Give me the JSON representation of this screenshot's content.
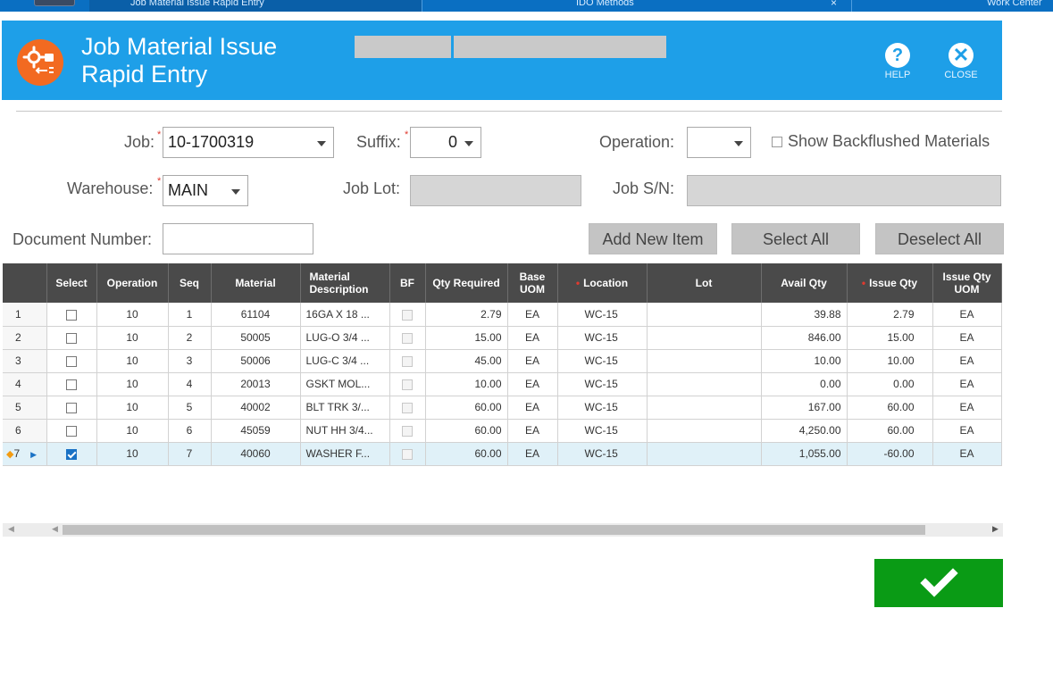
{
  "app": {
    "tabs": [
      "Job Material Issue Rapid Entry",
      "IDO Methods",
      "Work Center"
    ],
    "title_line1": "Job Material Issue",
    "title_line2": "Rapid Entry",
    "help_label": "HELP",
    "close_label": "CLOSE"
  },
  "form": {
    "job_label": "Job:",
    "job_value": "10-1700319",
    "suffix_label": "Suffix:",
    "suffix_value": "0",
    "operation_label": "Operation:",
    "operation_value": "",
    "show_backflushed_label": "Show Backflushed Materials",
    "warehouse_label": "Warehouse:",
    "warehouse_value": "MAIN",
    "job_lot_label": "Job Lot:",
    "job_sn_label": "Job S/N:",
    "doc_number_label": "Document Number:",
    "doc_number_value": ""
  },
  "buttons": {
    "add_new_item": "Add New Item",
    "select_all": "Select All",
    "deselect_all": "Deselect All"
  },
  "grid": {
    "columns": [
      "Select",
      "Operation",
      "Seq",
      "Material",
      "Material Description",
      "BF",
      "Qty Required",
      "Base UOM",
      "Location",
      "Lot",
      "Avail Qty",
      "Issue Qty",
      "Issue Qty UOM"
    ],
    "rows": [
      {
        "n": "1",
        "selected": false,
        "operation": "10",
        "seq": "1",
        "material": "61104",
        "desc": "16GA X 18 ...",
        "qty_required": "2.79",
        "base_uom": "EA",
        "location": "WC-15",
        "lot": "",
        "avail_qty": "39.88",
        "issue_qty": "2.79",
        "issue_uom": "EA"
      },
      {
        "n": "2",
        "selected": false,
        "operation": "10",
        "seq": "2",
        "material": "50005",
        "desc": "LUG-O 3/4 ...",
        "qty_required": "15.00",
        "base_uom": "EA",
        "location": "WC-15",
        "lot": "",
        "avail_qty": "846.00",
        "issue_qty": "15.00",
        "issue_uom": "EA"
      },
      {
        "n": "3",
        "selected": false,
        "operation": "10",
        "seq": "3",
        "material": "50006",
        "desc": "LUG-C 3/4 ...",
        "qty_required": "45.00",
        "base_uom": "EA",
        "location": "WC-15",
        "lot": "",
        "avail_qty": "10.00",
        "issue_qty": "10.00",
        "issue_uom": "EA"
      },
      {
        "n": "4",
        "selected": false,
        "operation": "10",
        "seq": "4",
        "material": "20013",
        "desc": "GSKT MOL...",
        "qty_required": "10.00",
        "base_uom": "EA",
        "location": "WC-15",
        "lot": "",
        "avail_qty": "0.00",
        "issue_qty": "0.00",
        "issue_uom": "EA"
      },
      {
        "n": "5",
        "selected": false,
        "operation": "10",
        "seq": "5",
        "material": "40002",
        "desc": "BLT TRK 3/...",
        "qty_required": "60.00",
        "base_uom": "EA",
        "location": "WC-15",
        "lot": "",
        "avail_qty": "167.00",
        "issue_qty": "60.00",
        "issue_uom": "EA"
      },
      {
        "n": "6",
        "selected": false,
        "operation": "10",
        "seq": "6",
        "material": "45059",
        "desc": "NUT HH 3/4...",
        "qty_required": "60.00",
        "base_uom": "EA",
        "location": "WC-15",
        "lot": "",
        "avail_qty": "4,250.00",
        "issue_qty": "60.00",
        "issue_uom": "EA"
      },
      {
        "n": "7",
        "selected": true,
        "operation": "10",
        "seq": "7",
        "material": "40060",
        "desc": "WASHER F...",
        "qty_required": "60.00",
        "base_uom": "EA",
        "location": "WC-15",
        "lot": "",
        "avail_qty": "1,055.00",
        "issue_qty": "-60.00",
        "issue_uom": "EA"
      }
    ]
  },
  "colors": {
    "header_blue": "#1e9fe8",
    "icon_orange": "#f26a21",
    "ok_green": "#0a9b15",
    "grid_header": "#4a4a4a"
  }
}
